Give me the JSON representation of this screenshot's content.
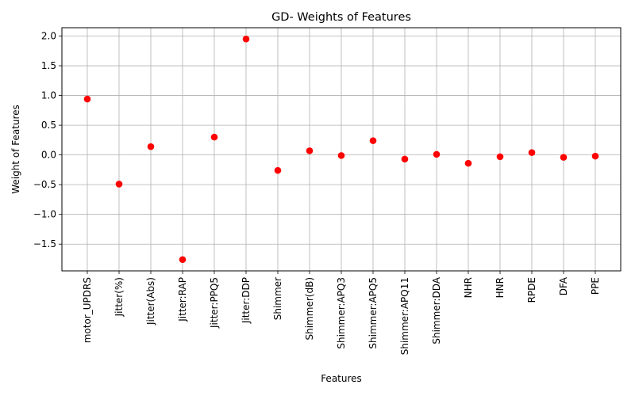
{
  "chart_data": {
    "type": "scatter",
    "title": "GD- Weights of Features",
    "xlabel": "Features",
    "ylabel": "Weight of Features",
    "categories": [
      "motor_UPDRS",
      "Jitter(%)",
      "Jitter(Abs)",
      "Jitter:RAP",
      "Jitter:PPQ5",
      "Jitter:DDP",
      "Shimmer",
      "Shimmer(dB)",
      "Shimmer:APQ3",
      "Shimmer:APQ5",
      "Shimmer:APQ11",
      "Shimmer:DDA",
      "NHR",
      "HNR",
      "RPDE",
      "DFA",
      "PPE"
    ],
    "values": [
      0.94,
      -0.49,
      0.14,
      -1.76,
      0.3,
      1.95,
      -0.26,
      0.07,
      -0.01,
      0.24,
      -0.07,
      0.01,
      -0.14,
      -0.03,
      0.04,
      -0.04,
      -0.02
    ],
    "yticks": [
      -1.5,
      -1.0,
      -0.5,
      0.0,
      0.5,
      1.0,
      1.5,
      2.0
    ],
    "ytick_labels": [
      "−1.5",
      "−1.0",
      "−0.5",
      "0.0",
      "0.5",
      "1.0",
      "1.5",
      "2.0"
    ],
    "ylim": [
      -1.95,
      2.14
    ],
    "grid": true,
    "marker_color": "#ff0000"
  }
}
